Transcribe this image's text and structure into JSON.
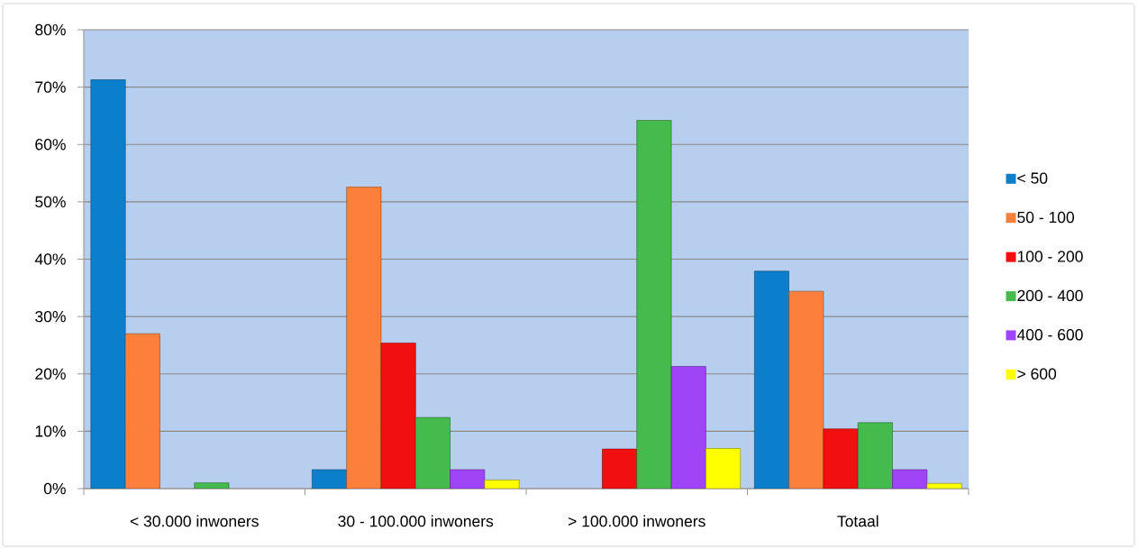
{
  "chart_data": {
    "type": "bar",
    "categories": [
      "< 30.000 inwoners",
      "30 - 100.000 inwoners",
      "> 100.000 inwoners",
      "Totaal"
    ],
    "series": [
      {
        "name": "< 50",
        "color": "#0b7fca",
        "values": [
          71.3,
          3.3,
          null,
          37.9
        ]
      },
      {
        "name": "50 - 100",
        "color": "#fd7f3c",
        "values": [
          27.0,
          52.6,
          null,
          34.4
        ]
      },
      {
        "name": "100 - 200",
        "color": "#f01010",
        "values": [
          null,
          25.4,
          6.9,
          10.4
        ]
      },
      {
        "name": "200 - 400",
        "color": "#46bb4d",
        "values": [
          1.0,
          12.4,
          64.2,
          11.5
        ]
      },
      {
        "name": "400 - 600",
        "color": "#a044f8",
        "values": [
          null,
          3.3,
          21.3,
          3.3
        ]
      },
      {
        "name": "> 600",
        "color": "#ffff00",
        "values": [
          null,
          1.5,
          7.0,
          0.9
        ]
      }
    ],
    "ylim": [
      0,
      80
    ],
    "yticks": [
      {
        "value": 0,
        "label": "0%"
      },
      {
        "value": 10,
        "label": "10%"
      },
      {
        "value": 20,
        "label": "20%"
      },
      {
        "value": 30,
        "label": "30%"
      },
      {
        "value": 40,
        "label": "40%"
      },
      {
        "value": 50,
        "label": "50%"
      },
      {
        "value": 60,
        "label": "60%"
      },
      {
        "value": 70,
        "label": "70%"
      },
      {
        "value": 80,
        "label": "80%"
      }
    ],
    "grid": "y",
    "legend": "right"
  }
}
